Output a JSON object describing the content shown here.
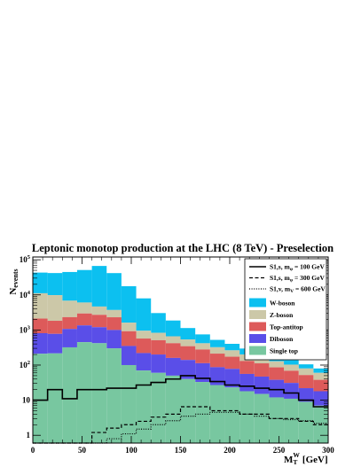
{
  "chart_data": {
    "type": "area",
    "title": "Leptonic monotop production at the LHC (8 TeV) - Preselection",
    "ylabel_main": "N",
    "ylabel_sub": "events",
    "xlabel_main": "M",
    "xlabel_sub": "T",
    "xlabel_sup": "W",
    "xlabel_unit": "[GeV]",
    "xlim": [
      0,
      300
    ],
    "ylim": [
      0.6,
      120000
    ],
    "yscale": "log",
    "bin_width": 15,
    "x_ticks": [
      "0",
      "50",
      "100",
      "150",
      "200",
      "250",
      "300"
    ],
    "y_ticks": [
      {
        "value": 1,
        "label": "1"
      },
      {
        "value": 10,
        "label": "10"
      },
      {
        "value": 100,
        "base": "10",
        "exp": "2"
      },
      {
        "value": 1000,
        "base": "10",
        "exp": "3"
      },
      {
        "value": 10000,
        "base": "10",
        "exp": "4"
      },
      {
        "value": 100000,
        "base": "10",
        "exp": "5"
      }
    ],
    "legend_position": "top-right",
    "stack": [
      {
        "name": "W-boson",
        "color": "#0cc0f0",
        "values": [
          32000,
          32000,
          38000,
          45000,
          62000,
          38000,
          16000,
          7000,
          2200,
          1200,
          600,
          330,
          200,
          140,
          95,
          70,
          45,
          35,
          25,
          20
        ]
      },
      {
        "name": "Z-boson",
        "color": "#ccc8a8",
        "values": [
          9000,
          8000,
          4500,
          3100,
          1950,
          1400,
          700,
          380,
          320,
          240,
          190,
          140,
          110,
          90,
          70,
          55,
          42,
          34,
          28,
          22
        ]
      },
      {
        "name": "Top-antitop",
        "color": "#dd5a5a",
        "values": [
          1300,
          1050,
          1250,
          1600,
          1500,
          1300,
          570,
          350,
          310,
          260,
          205,
          165,
          125,
          95,
          75,
          65,
          48,
          38,
          30,
          20
        ]
      },
      {
        "name": "Diboson",
        "color": "#5a4ee8",
        "values": [
          600,
          560,
          750,
          900,
          780,
          700,
          250,
          150,
          140,
          110,
          100,
          80,
          60,
          55,
          38,
          32,
          26,
          20,
          13,
          11
        ]
      },
      {
        "name": "Single top",
        "color": "#78c7a0",
        "values": [
          210,
          215,
          320,
          450,
          420,
          300,
          100,
          70,
          60,
          50,
          40,
          33,
          27,
          23,
          18,
          15,
          12,
          11,
          9,
          7
        ]
      }
    ],
    "signals": [
      {
        "name_main": "S1,s, m",
        "name_sub": "φ",
        "name_rest": " = 100 GeV",
        "dash": "",
        "width": 1.6,
        "values": [
          10,
          20,
          11,
          20,
          20,
          22,
          22,
          27,
          32,
          40,
          50,
          42,
          34,
          27,
          25,
          22,
          20,
          16,
          10,
          6.5
        ]
      },
      {
        "name_main": "S1,s, m",
        "name_sub": "φ",
        "name_rest": " = 300 GeV",
        "dash": "4,2.5",
        "width": 1.2,
        "values": [
          0.3,
          0.3,
          0.3,
          0.3,
          1.2,
          1.6,
          2.0,
          2.5,
          3.3,
          4.0,
          6.5,
          6.5,
          5.0,
          5.0,
          4.0,
          4.0,
          3.0,
          3.0,
          2.5,
          2.0
        ]
      },
      {
        "name_main": "S1,v, m",
        "name_sub": "V",
        "name_rest": " = 600 GeV",
        "dash": "1,1.6",
        "width": 1.2,
        "values": [
          0.3,
          0.6,
          0.6,
          0.3,
          0.6,
          0.8,
          1.1,
          1.5,
          2.0,
          2.6,
          3.5,
          4.0,
          4.5,
          4.5,
          4.0,
          3.5,
          3.0,
          2.8,
          2.6,
          2.2
        ]
      }
    ]
  }
}
